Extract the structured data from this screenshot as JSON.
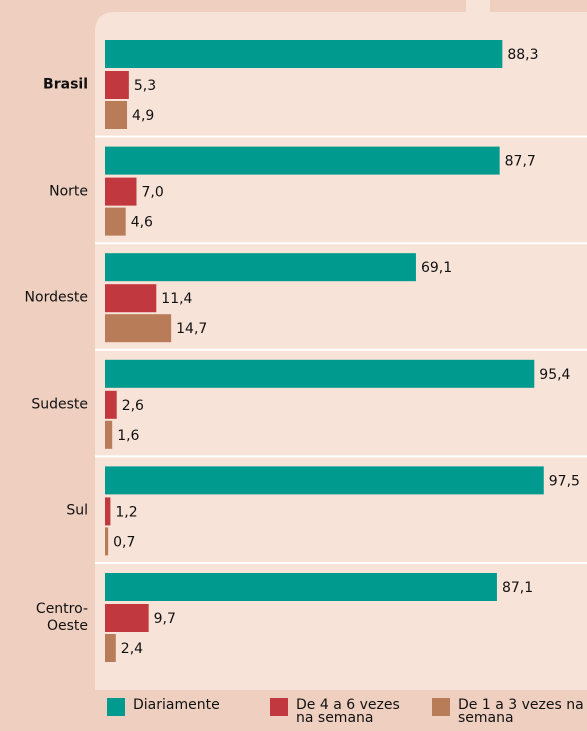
{
  "chart_data": {
    "type": "bar",
    "orientation": "horizontal",
    "categories": [
      "Brasil",
      "Norte",
      "Nordeste",
      "Sudeste",
      "Sul",
      "Centro-Oeste"
    ],
    "series": [
      {
        "name": "Diariamente",
        "color": "#009a8e",
        "values": [
          88.3,
          87.7,
          69.1,
          95.4,
          97.5,
          87.1
        ],
        "value_labels": [
          "88,3",
          "87,7",
          "69,1",
          "95,4",
          "97,5",
          "87,1"
        ]
      },
      {
        "name": "De 4 a 6 vezes na semana",
        "color": "#c1393f",
        "values": [
          5.3,
          7.0,
          11.4,
          2.6,
          1.2,
          9.7
        ],
        "value_labels": [
          "5,3",
          "7,0",
          "11,4",
          "2,6",
          "1,2",
          "9,7"
        ]
      },
      {
        "name": "De 1 a 3 vezes na semana",
        "color": "#b87c58",
        "values": [
          4.9,
          4.6,
          14.7,
          1.6,
          0.7,
          2.4
        ],
        "value_labels": [
          "4,9",
          "4,6",
          "14,7",
          "1,6",
          "0,7",
          "2,4"
        ]
      }
    ],
    "xlim": [
      0,
      100
    ]
  }
}
